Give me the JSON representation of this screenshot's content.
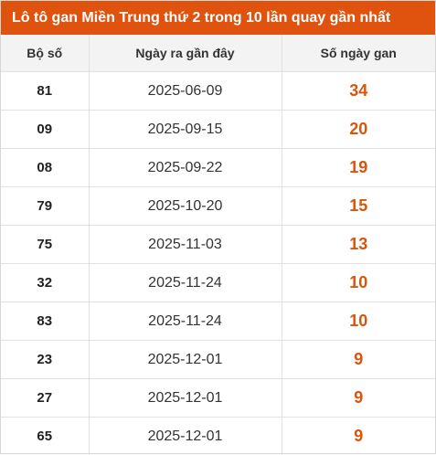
{
  "title": "Lô tô gan Miền Trung thứ 2 trong 10 lần quay gần nhất",
  "headers": [
    "Bộ số",
    "Ngày ra gần đây",
    "Số ngày gan"
  ],
  "rows": [
    {
      "number": "81",
      "date": "2025-06-09",
      "days": "34"
    },
    {
      "number": "09",
      "date": "2025-09-15",
      "days": "20"
    },
    {
      "number": "08",
      "date": "2025-09-22",
      "days": "19"
    },
    {
      "number": "79",
      "date": "2025-10-20",
      "days": "15"
    },
    {
      "number": "75",
      "date": "2025-11-03",
      "days": "13"
    },
    {
      "number": "32",
      "date": "2025-11-24",
      "days": "10"
    },
    {
      "number": "83",
      "date": "2025-11-24",
      "days": "10"
    },
    {
      "number": "23",
      "date": "2025-12-01",
      "days": "9"
    },
    {
      "number": "27",
      "date": "2025-12-01",
      "days": "9"
    },
    {
      "number": "65",
      "date": "2025-12-01",
      "days": "9"
    }
  ],
  "colors": {
    "header_bg": "#e0530f",
    "accent_value": "#d9550b",
    "table_head_bg": "#f3f3f3"
  }
}
